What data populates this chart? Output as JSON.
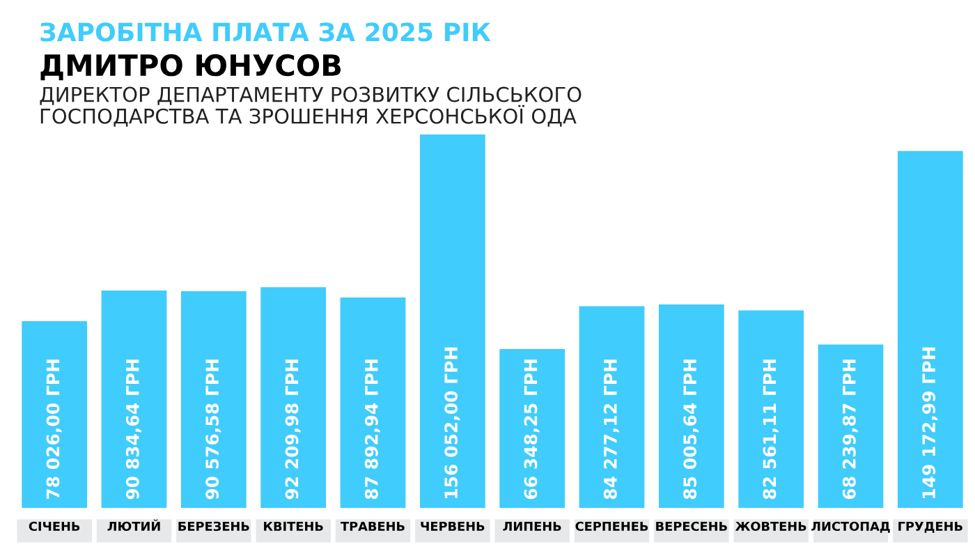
{
  "chart_data": {
    "type": "bar",
    "title": "ЗАРОБІТНА ПЛАТА ЗА 2025 РІК",
    "subtitle": "ДМИТРО ЮНУСОВ",
    "annotations": [
      "ДИРЕКТОР ДЕПАРТАМЕНТУ РОЗВИТКУ СІЛЬСЬКОГО\nГОСПОДАРСТВА ТА ЗРОШЕННЯ ХЕРСОНСЬКОЇ ОДА"
    ],
    "categories": [
      "СІЧЕНЬ",
      "ЛЮТИЙ",
      "БЕРЕЗЕНЬ",
      "КВІТЕНЬ",
      "ТРАВЕНЬ",
      "ЧЕРВЕНЬ",
      "ЛИПЕНЬ",
      "СЕРПЕНЕЬ",
      "ВЕРЕСЕНЬ",
      "ЖОВТЕНЬ",
      "ЛИСТОПАД",
      "ГРУДЕНЬ"
    ],
    "values": [
      78026.0,
      90834.64,
      90576.58,
      92209.98,
      87892.94,
      156052.0,
      66348.25,
      84277.12,
      85005.64,
      82561.11,
      68239.87,
      149172.99
    ],
    "value_labels": [
      "78 026,00 ГРН",
      "90 834,64 ГРН",
      "90 576,58 ГРН",
      "92 209,98 ГРН",
      "87 892,94 ГРН",
      "156 052,00 ГРН",
      "66 348,25 ГРН",
      "84 277,12 ГРН",
      "85 005,64 ГРН",
      "82 561,11 ГРН",
      "68 239,87 ГРН",
      "149 172,99 ГРН"
    ],
    "color": "#40ccfc",
    "grid": false,
    "legend": false
  }
}
